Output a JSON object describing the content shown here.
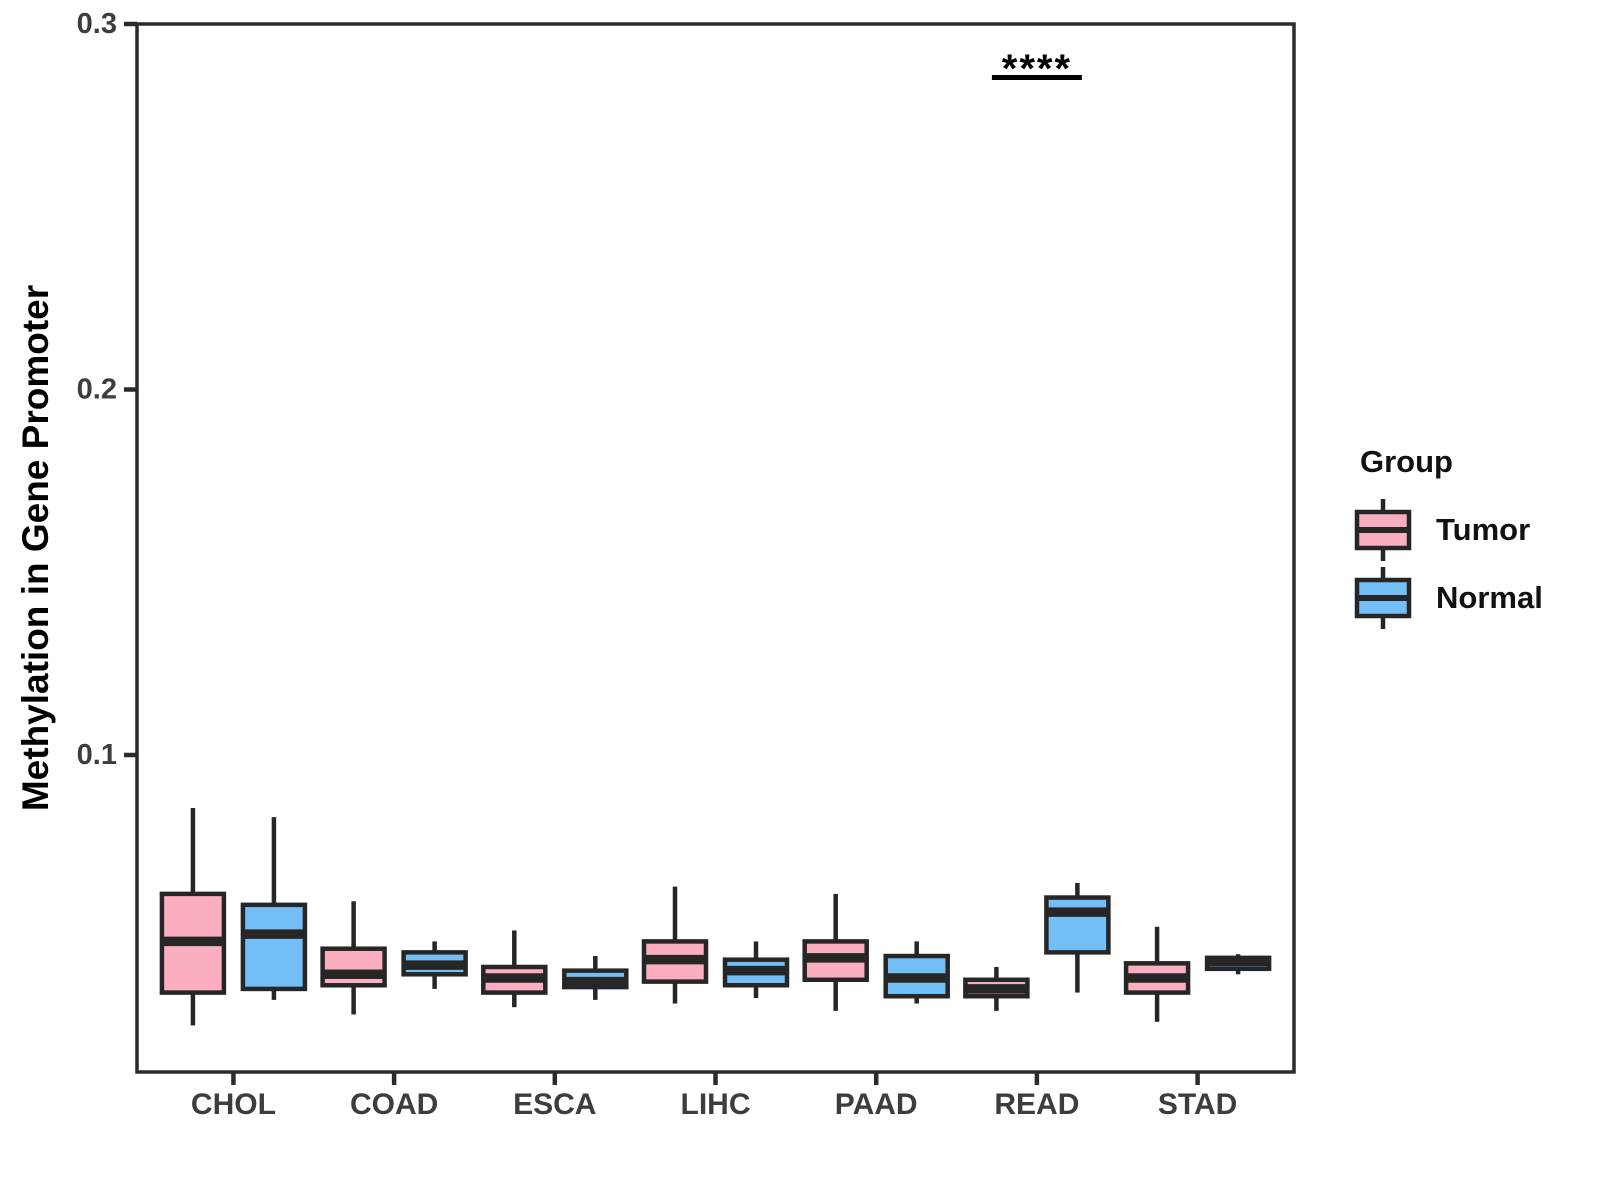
{
  "chart_data": {
    "type": "boxplot",
    "title": "",
    "xlabel": "",
    "ylabel": "Methylation in Gene Promoter",
    "categories": [
      "CHOL",
      "COAD",
      "ESCA",
      "LIHC",
      "PAAD",
      "READ",
      "STAD"
    ],
    "yticks": [
      {
        "value": 0.1,
        "label": "0.1"
      },
      {
        "value": 0.2,
        "label": "0.2"
      },
      {
        "value": 0.3,
        "label": "0.3"
      }
    ],
    "ylim": [
      0.013,
      0.3
    ],
    "grid": false,
    "panel_border": true,
    "colors": {
      "tumor_fill": "#FAAEC0",
      "normal_fill": "#73BEF4",
      "box_outline": "#262626",
      "axis_text": "#3d3d3d",
      "axis_line": "#2b2b2b",
      "annotation": "#000000"
    },
    "legend": {
      "title": "Group",
      "position": "right",
      "entries": [
        {
          "label": "Tumor",
          "color": "#FAAEC0"
        },
        {
          "label": "Normal",
          "color": "#73BEF4"
        }
      ]
    },
    "series": [
      {
        "name": "Tumor",
        "color": "#FAAEC0",
        "boxes": [
          {
            "category": "CHOL",
            "whisker_low": 0.026,
            "q1": 0.035,
            "median": 0.049,
            "q3": 0.062,
            "whisker_high": 0.0855
          },
          {
            "category": "COAD",
            "whisker_low": 0.029,
            "q1": 0.037,
            "median": 0.04,
            "q3": 0.047,
            "whisker_high": 0.06
          },
          {
            "category": "ESCA",
            "whisker_low": 0.031,
            "q1": 0.035,
            "median": 0.039,
            "q3": 0.042,
            "whisker_high": 0.052
          },
          {
            "category": "LIHC",
            "whisker_low": 0.032,
            "q1": 0.038,
            "median": 0.044,
            "q3": 0.049,
            "whisker_high": 0.064
          },
          {
            "category": "PAAD",
            "whisker_low": 0.03,
            "q1": 0.0385,
            "median": 0.0445,
            "q3": 0.049,
            "whisker_high": 0.062
          },
          {
            "category": "READ",
            "whisker_low": 0.03,
            "q1": 0.034,
            "median": 0.036,
            "q3": 0.0385,
            "whisker_high": 0.042
          },
          {
            "category": "STAD",
            "whisker_low": 0.027,
            "q1": 0.035,
            "median": 0.039,
            "q3": 0.043,
            "whisker_high": 0.053
          }
        ]
      },
      {
        "name": "Normal",
        "color": "#73BEF4",
        "boxes": [
          {
            "category": "CHOL",
            "whisker_low": 0.033,
            "q1": 0.036,
            "median": 0.051,
            "q3": 0.059,
            "whisker_high": 0.083
          },
          {
            "category": "COAD",
            "whisker_low": 0.036,
            "q1": 0.04,
            "median": 0.0425,
            "q3": 0.046,
            "whisker_high": 0.049
          },
          {
            "category": "ESCA",
            "whisker_low": 0.033,
            "q1": 0.0365,
            "median": 0.038,
            "q3": 0.041,
            "whisker_high": 0.045
          },
          {
            "category": "LIHC",
            "whisker_low": 0.0335,
            "q1": 0.037,
            "median": 0.041,
            "q3": 0.044,
            "whisker_high": 0.049
          },
          {
            "category": "PAAD",
            "whisker_low": 0.032,
            "q1": 0.034,
            "median": 0.039,
            "q3": 0.045,
            "whisker_high": 0.049
          },
          {
            "category": "READ",
            "whisker_low": 0.035,
            "q1": 0.046,
            "median": 0.057,
            "q3": 0.061,
            "whisker_high": 0.065
          },
          {
            "category": "STAD",
            "whisker_low": 0.04,
            "q1": 0.0415,
            "median": 0.0435,
            "q3": 0.0445,
            "whisker_high": 0.0455
          }
        ]
      }
    ],
    "annotations": [
      {
        "text": "****",
        "category": "READ"
      }
    ]
  }
}
